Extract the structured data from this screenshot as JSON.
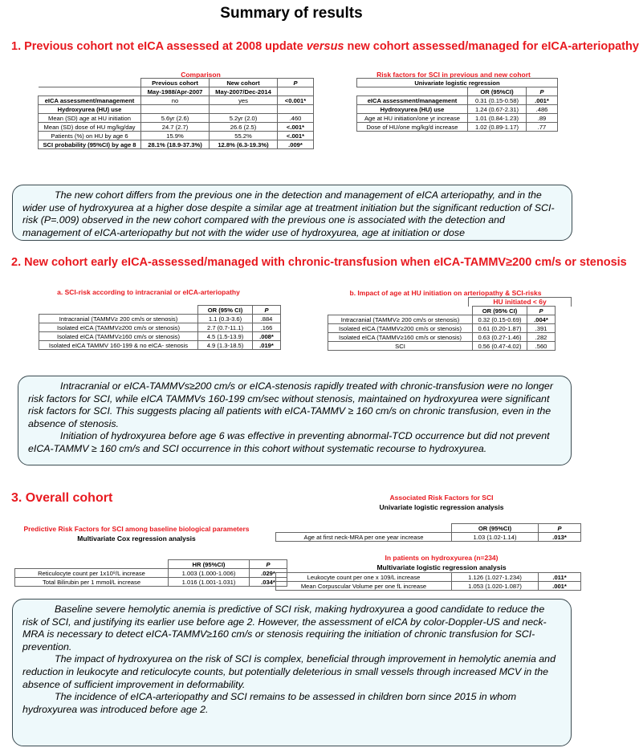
{
  "title": "Summary of results",
  "s1": {
    "heading_parts": [
      "1. Previous cohort not eICA assessed at 2008 update ",
      "versus",
      "  new cohort assessed/managed for eICA-arteriopathy"
    ],
    "t1": {
      "caption": "Comparison",
      "header": [
        [
          "",
          "Previous cohort",
          "New cohort",
          "P"
        ],
        [
          "",
          "May-1988/Apr-2007",
          "May-2007/Dec-2014",
          ""
        ]
      ],
      "rows": [
        [
          "eICA assessment/management",
          "no",
          "yes",
          "<0.001*"
        ],
        [
          "Hydroxyurea (HU) use",
          "",
          "",
          ""
        ],
        [
          "Mean (SD) age at HU initiation",
          "5.6yr (2.6)",
          "5.2yr (2.0)",
          ".460"
        ],
        [
          "Mean (SD) dose of HU mg/kg/day",
          "24.7 (2.7)",
          "26.6 (2.5)",
          "<.001*"
        ],
        [
          "Patients (%) on HU by age 6",
          "15.9%",
          "55.2%",
          "<.001*"
        ],
        [
          "SCI probability (95%CI) by age 8",
          "28.1% (18.9-37.3%)",
          "12.8% (6.3-19.3%)",
          ".009*"
        ]
      ]
    },
    "t2": {
      "caption": "Risk factors for SCI in previous and new cohort",
      "header": [
        [
          "Univariate logistic regression"
        ],
        [
          "",
          "OR (95%CI)",
          "P"
        ]
      ],
      "rows": [
        [
          "eICA assessment/management",
          "0.31 (0.15-0.58)",
          ".001*"
        ],
        [
          "Hydroxyurea (HU) use",
          "1.24 (0.67-2.31)",
          ".486"
        ],
        [
          "Age at HU initiation/one yr increase",
          "1.01 (0.84-1.23)",
          ".89"
        ],
        [
          "Dose of HU/one mg/kg/d increase",
          "1.02 (0.89-1.17)",
          ".77"
        ]
      ]
    },
    "box": [
      "The new cohort differs from the previous one in the detection and management of eICA arteriopathy, and in the wider use of hydroxyurea at a higher dose despite a similar age at treatment initiation but the significant reduction of SCI-risk  (P=.009) observed in the new cohort compared with the previous one is associated with the detection and management of eICA-arteriopathy but not with the wider use of hydroxyurea, age at initiation or dose"
    ]
  },
  "s2": {
    "heading": "2. New cohort early eICA-assessed/managed with chronic-transfusion when eICA-TAMMV≥200 cm/s or stenosis",
    "t1": {
      "caption": "a. SCI-risk according to intracranial or eICA-arteriopathy",
      "header": [
        [
          "",
          "OR (95% CI)",
          "P"
        ]
      ],
      "rows": [
        [
          "Intracranial  (TAMMV≥ 200 cm/s or stenosis)",
          "1.1 (0.3-3.6)",
          ".884"
        ],
        [
          "Isolated eICA (TAMMV≥200 cm/s or stenosis)",
          "2.7 (0.7-11.1)",
          ".166"
        ],
        [
          "Isolated eICA (TAMMV≥160 cm/s or stenosis)",
          "4.5 (1.5-13.9)",
          ".008*"
        ],
        [
          "Isolated eICA TAMMV 160-199 & no eICA- stenosis",
          "4.9 (1.3-18.5)",
          ".019*"
        ]
      ]
    },
    "t2": {
      "caption": "b. Impact of age at HU initiation on arteriopathy & SCI-risks",
      "group": "HU initiated < 6y",
      "header": [
        [
          "",
          "OR (95% CI)",
          "P"
        ]
      ],
      "rows": [
        [
          "Intracranial  (TAMMV≥ 200 cm/s or stenosis)",
          "0.32 (0.15-0.69)",
          ".004*"
        ],
        [
          "Isolated eICA (TAMMV≥200 cm/s or stenosis)",
          "0.61 (0.20-1.87)",
          ".391"
        ],
        [
          "Isolated eICA (TAMMV≥160 cm/s or stenosis)",
          "0.63 (0.27-1.46)",
          ".282"
        ],
        [
          "SCI",
          "0.56 (0.47-4.02)",
          ".560"
        ]
      ]
    },
    "box": [
      "Intracranial or eICA-TAMMVs≥200 cm/s or eICA-stenosis rapidly treated with chronic-transfusion were no longer risk factors for SCI, while eICA TAMMVs 160-199 cm/sec  without stenosis, maintained on hydroxyurea were significant risk factors for SCI. This suggests placing all patients with eICA-TAMMV ≥ 160 cm/s on chronic transfusion, even in the absence of stenosis.",
      "Initiation of hydroxyurea before age 6 was effective in preventing abnormal-TCD occurrence but did not prevent eICA-TAMMV ≥ 160 cm/s and SCI occurrence in this cohort without systematic recourse to hydroxyurea."
    ]
  },
  "s3": {
    "heading": "3. Overall cohort",
    "t1": {
      "caption": "Predictive Risk Factors for SCI among baseline biological parameters",
      "subtitle": "Multivariate Cox regression analysis",
      "header": [
        [
          "",
          "HR (95%CI)",
          "P"
        ]
      ],
      "rows": [
        [
          "Reticulocyte count per 1x10⁹/L increase",
          "1.003 (1.000-1.006)",
          ".029*"
        ],
        [
          "Total Bilirubin per 1 mmol/L increase",
          "1.016 (1.001-1.031)",
          ".034*"
        ]
      ]
    },
    "t2": {
      "caption": "Associated Risk Factors for SCI",
      "subtitle": "Univariate logistic regression analysis",
      "header": [
        [
          "",
          "OR (95%CI)",
          "P"
        ]
      ],
      "rows": [
        [
          "Age at first neck-MRA per one year increase",
          "1.03 (1.02-1.14)",
          ".013*"
        ]
      ]
    },
    "t3": {
      "caption": "In patients on hydroxyurea (n=234)",
      "subtitle": "Multivariate logistic regression analysis",
      "header": [],
      "rows": [
        [
          "Leukocyte count  per one x 109/L increase",
          "1.126 (1.027-1.234)",
          ".011*"
        ],
        [
          "Mean Corpuscular Volume per one fL increase",
          "1.053 (1.020-1.087)",
          ".001*"
        ]
      ]
    },
    "box": [
      "Baseline severe hemolytic anemia is predictive of SCI risk, making hydroxyurea a good candidate to reduce the risk of SCI, and justifying its earlier use before age 2. However, the assessment of eICA by color-Doppler-US and neck-MRA is necessary to detect eICA-TAMMV≥160 cm/s or stenosis requiring the initiation of chronic transfusion for SCI-prevention.",
      "The impact of hydroxyurea on the risk of SCI is complex, beneficial through improvement in hemolytic anemia and reduction in leukocyte and reticulocyte counts, but potentially deleterious in small vessels through increased MCV in the absence of sufficient improvement in deformability.",
      "The incidence of eICA-arteriopathy and SCI remains to be assessed in children born since 2015 in whom hydroxyurea was introduced before age 2."
    ]
  },
  "colors": {
    "heading": "#e8191f",
    "box_bg": "#eef9fb",
    "box_border": "#3a4a50"
  }
}
